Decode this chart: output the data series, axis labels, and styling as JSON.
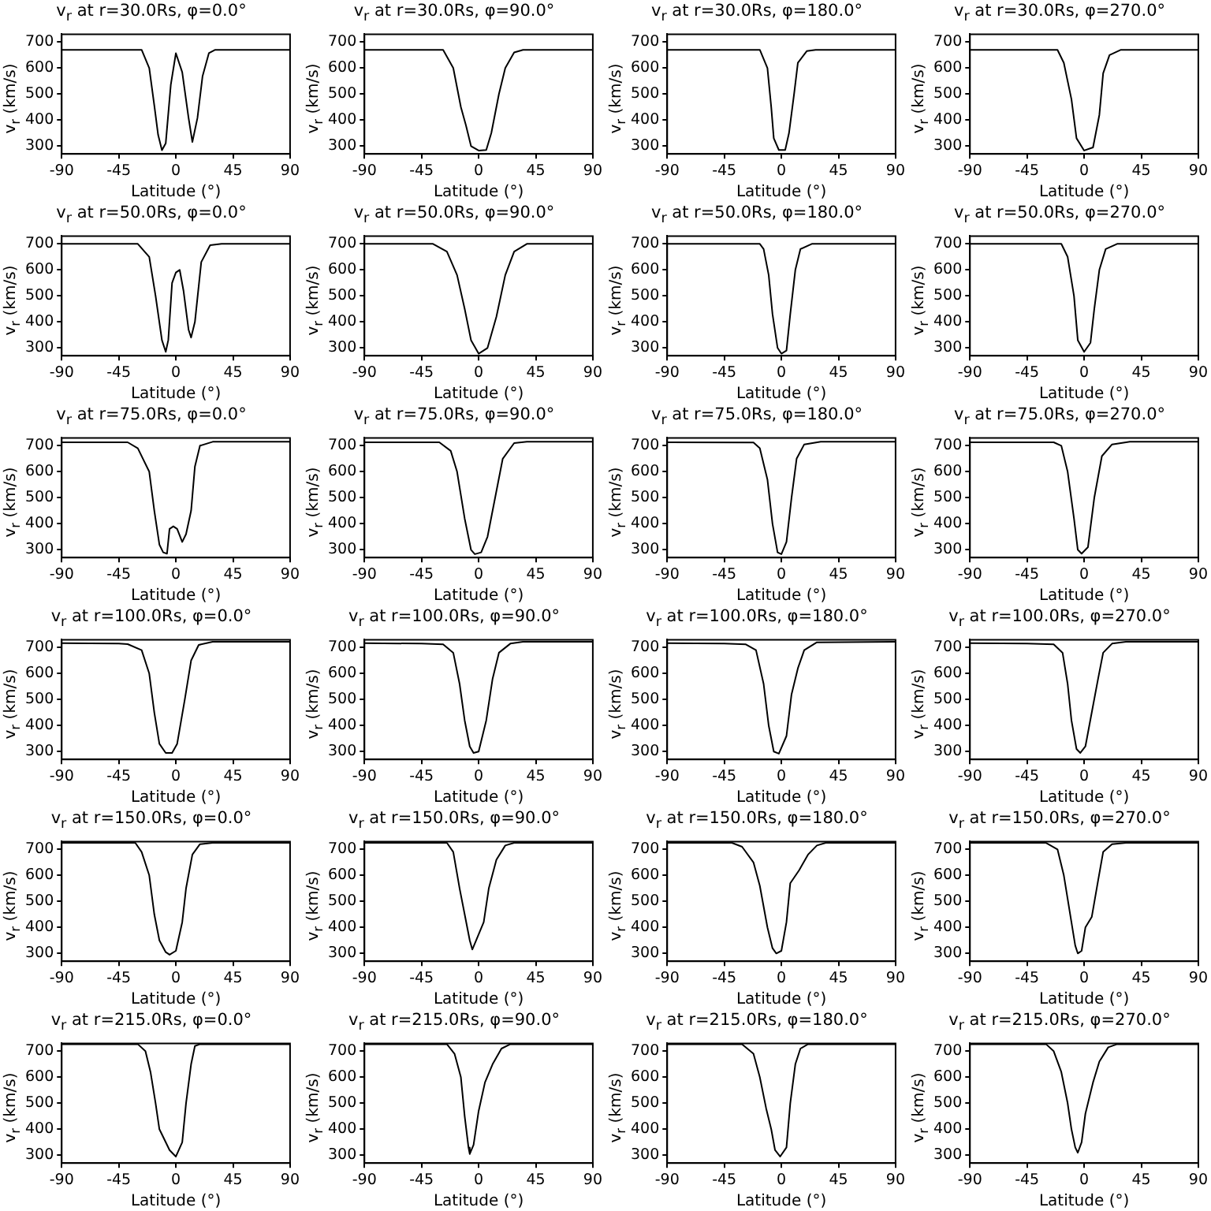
{
  "chart_data": [
    {
      "type": "line",
      "title": "v$_{r}$ at r=30.0Rs, φ=0.0°",
      "xlabel": "Latitude (°)",
      "ylabel": "v$_{r}$ (km/s)",
      "xlim": [
        -90,
        90
      ],
      "xticks": [
        -90,
        -45,
        0,
        45,
        90
      ],
      "ylim": [
        270,
        730
      ],
      "yticks": [
        300,
        400,
        500,
        600,
        700
      ],
      "marker": "none",
      "color": "#000000",
      "x": [
        -90,
        -27,
        -21,
        -17,
        -14,
        -11,
        -8,
        -4,
        0,
        5,
        10,
        13,
        17,
        21,
        26,
        31,
        90
      ],
      "values": [
        670,
        670,
        600,
        456,
        343,
        284,
        311,
        536,
        657,
        584,
        408,
        316,
        408,
        568,
        657,
        670,
        670
      ]
    },
    {
      "type": "line",
      "title": "v$_{r}$ at r=30.0Rs, φ=90.0°",
      "xlabel": "Latitude (°)",
      "ylabel": "v$_{r}$ (km/s)",
      "xlim": [
        -90,
        90
      ],
      "xticks": [
        -90,
        -45,
        0,
        45,
        90
      ],
      "ylim": [
        270,
        730
      ],
      "yticks": [
        300,
        400,
        500,
        600,
        700
      ],
      "marker": "none",
      "color": "#000000",
      "x": [
        -90,
        -28,
        -20,
        -14,
        -10,
        -6,
        0,
        6,
        10,
        16,
        21,
        28,
        35,
        90
      ],
      "values": [
        670,
        670,
        600,
        450,
        380,
        300,
        283,
        285,
        350,
        500,
        600,
        660,
        670,
        670
      ]
    },
    {
      "type": "line",
      "title": "v$_{r}$ at r=30.0Rs, φ=180.0°",
      "xlabel": "Latitude (°)",
      "ylabel": "v$_{r}$ (km/s)",
      "xlim": [
        -90,
        90
      ],
      "xticks": [
        -90,
        -45,
        0,
        45,
        90
      ],
      "ylim": [
        270,
        730
      ],
      "yticks": [
        300,
        400,
        500,
        600,
        700
      ],
      "marker": "none",
      "color": "#000000",
      "x": [
        -90,
        -17,
        -11,
        -8,
        -6,
        -2,
        3,
        6,
        10,
        13,
        20,
        27,
        90
      ],
      "values": [
        670,
        670,
        600,
        450,
        330,
        285,
        285,
        350,
        500,
        620,
        665,
        670,
        670
      ]
    },
    {
      "type": "line",
      "title": "v$_{r}$ at r=30.0Rs, φ=270.0°",
      "xlabel": "Latitude (°)",
      "ylabel": "v$_{r}$ (km/s)",
      "xlim": [
        -90,
        90
      ],
      "xticks": [
        -90,
        -45,
        0,
        45,
        90
      ],
      "ylim": [
        270,
        730
      ],
      "yticks": [
        300,
        400,
        500,
        600,
        700
      ],
      "marker": "none",
      "color": "#000000",
      "x": [
        -90,
        -21,
        -16,
        -10,
        -6,
        0,
        7,
        12,
        15,
        20,
        29,
        90
      ],
      "values": [
        670,
        670,
        620,
        480,
        330,
        283,
        295,
        420,
        580,
        650,
        670,
        670
      ]
    },
    {
      "type": "line",
      "title": "v$_{r}$ at r=50.0Rs, φ=0.0°",
      "xlabel": "Latitude (°)",
      "ylabel": "v$_{r}$ (km/s)",
      "xlim": [
        -90,
        90
      ],
      "xticks": [
        -90,
        -45,
        0,
        45,
        90
      ],
      "ylim": [
        270,
        730
      ],
      "yticks": [
        300,
        400,
        500,
        600,
        700
      ],
      "marker": "none",
      "color": "#000000",
      "x": [
        -90,
        -30,
        -21,
        -16,
        -11,
        -8,
        -6,
        -3,
        0,
        3,
        6,
        10,
        12,
        15,
        20,
        27,
        36,
        90
      ],
      "values": [
        700,
        700,
        650,
        500,
        330,
        285,
        330,
        550,
        590,
        600,
        520,
        370,
        340,
        400,
        630,
        695,
        700,
        700
      ]
    },
    {
      "type": "line",
      "title": "v$_{r}$ at r=50.0Rs, φ=90.0°",
      "xlabel": "Latitude (°)",
      "ylabel": "v$_{r}$ (km/s)",
      "xlim": [
        -90,
        90
      ],
      "xticks": [
        -90,
        -45,
        0,
        45,
        90
      ],
      "ylim": [
        270,
        730
      ],
      "yticks": [
        300,
        400,
        500,
        600,
        700
      ],
      "marker": "none",
      "color": "#000000",
      "x": [
        -90,
        -36,
        -25,
        -17,
        -11,
        -6,
        0,
        7,
        14,
        21,
        28,
        38,
        90
      ],
      "values": [
        700,
        700,
        670,
        580,
        450,
        330,
        278,
        300,
        420,
        580,
        670,
        700,
        700
      ]
    },
    {
      "type": "line",
      "title": "v$_{r}$ at r=50.0Rs, φ=180.0°",
      "xlabel": "Latitude (°)",
      "ylabel": "v$_{r}$ (km/s)",
      "xlim": [
        -90,
        90
      ],
      "xticks": [
        -90,
        -45,
        0,
        45,
        90
      ],
      "ylim": [
        270,
        730
      ],
      "yticks": [
        300,
        400,
        500,
        600,
        700
      ],
      "marker": "none",
      "color": "#000000",
      "x": [
        -90,
        -17,
        -14,
        -10,
        -7,
        -3,
        0,
        4,
        7,
        11,
        15,
        24,
        90
      ],
      "values": [
        700,
        700,
        680,
        580,
        430,
        300,
        278,
        290,
        430,
        600,
        680,
        700,
        700
      ]
    },
    {
      "type": "line",
      "title": "v$_{r}$ at r=50.0Rs, φ=270.0°",
      "xlabel": "Latitude (°)",
      "ylabel": "v$_{r}$ (km/s)",
      "xlim": [
        -90,
        90
      ],
      "xticks": [
        -90,
        -45,
        0,
        45,
        90
      ],
      "ylim": [
        270,
        730
      ],
      "yticks": [
        300,
        400,
        500,
        600,
        700
      ],
      "marker": "none",
      "color": "#000000",
      "x": [
        -90,
        -18,
        -13,
        -8,
        -5,
        0,
        5,
        8,
        12,
        17,
        26,
        90
      ],
      "values": [
        700,
        700,
        650,
        500,
        330,
        285,
        320,
        450,
        600,
        680,
        700,
        700
      ]
    },
    {
      "type": "line",
      "title": "v$_{r}$ at r=75.0Rs, φ=0.0°",
      "xlabel": "Latitude (°)",
      "ylabel": "v$_{r}$ (km/s)",
      "xlim": [
        -90,
        90
      ],
      "xticks": [
        -90,
        -45,
        0,
        45,
        90
      ],
      "ylim": [
        270,
        730
      ],
      "yticks": [
        300,
        400,
        500,
        600,
        700
      ],
      "marker": "none",
      "color": "#000000",
      "x": [
        -90,
        -38,
        -30,
        -21,
        -17,
        -13,
        -10,
        -7,
        -5,
        -2,
        1,
        5,
        8,
        12,
        15,
        19,
        29,
        90
      ],
      "values": [
        713,
        713,
        690,
        600,
        450,
        320,
        290,
        285,
        380,
        390,
        380,
        330,
        360,
        450,
        620,
        700,
        715,
        715
      ]
    },
    {
      "type": "line",
      "title": "v$_{r}$ at r=75.0Rs, φ=90.0°",
      "xlabel": "Latitude (°)",
      "ylabel": "v$_{r}$ (km/s)",
      "xlim": [
        -90,
        90
      ],
      "xticks": [
        -90,
        -45,
        0,
        45,
        90
      ],
      "ylim": [
        270,
        730
      ],
      "yticks": [
        300,
        400,
        500,
        600,
        700
      ],
      "marker": "none",
      "color": "#000000",
      "x": [
        -90,
        -31,
        -22,
        -17,
        -11,
        -6,
        -3,
        2,
        7,
        13,
        19,
        28,
        38,
        90
      ],
      "values": [
        713,
        713,
        680,
        600,
        420,
        300,
        283,
        290,
        350,
        500,
        650,
        710,
        715,
        715
      ]
    },
    {
      "type": "line",
      "title": "v$_{r}$ at r=75.0Rs, φ=180.0°",
      "xlabel": "Latitude (°)",
      "ylabel": "v$_{r}$ (km/s)",
      "xlim": [
        -90,
        90
      ],
      "xticks": [
        -90,
        -45,
        0,
        45,
        90
      ],
      "ylim": [
        270,
        730
      ],
      "yticks": [
        300,
        400,
        500,
        600,
        700
      ],
      "marker": "none",
      "color": "#000000",
      "x": [
        -90,
        -22,
        -17,
        -11,
        -7,
        -3,
        0,
        4,
        8,
        12,
        18,
        31,
        90
      ],
      "values": [
        713,
        712,
        690,
        570,
        400,
        290,
        283,
        330,
        500,
        650,
        705,
        715,
        715
      ]
    },
    {
      "type": "line",
      "title": "v$_{r}$ at r=75.0Rs, φ=270.0°",
      "xlabel": "Latitude (°)",
      "ylabel": "v$_{r}$ (km/s)",
      "xlim": [
        -90,
        90
      ],
      "xticks": [
        -90,
        -45,
        0,
        45,
        90
      ],
      "ylim": [
        270,
        730
      ],
      "yticks": [
        300,
        400,
        500,
        600,
        700
      ],
      "marker": "none",
      "color": "#000000",
      "x": [
        -90,
        -24,
        -18,
        -13,
        -8,
        -5,
        -2,
        3,
        8,
        14,
        22,
        36,
        90
      ],
      "values": [
        713,
        713,
        700,
        600,
        420,
        300,
        285,
        310,
        500,
        660,
        705,
        715,
        715
      ]
    },
    {
      "type": "line",
      "title": "v$_{r}$ at r=100.0Rs, φ=0.0°",
      "xlabel": "Latitude (°)",
      "ylabel": "v$_{r}$ (km/s)",
      "xlim": [
        -90,
        90
      ],
      "xticks": [
        -90,
        -45,
        0,
        45,
        90
      ],
      "ylim": [
        270,
        730
      ],
      "yticks": [
        300,
        400,
        500,
        600,
        700
      ],
      "marker": "none",
      "color": "#000000",
      "x": [
        -90,
        -45,
        -38,
        -27,
        -21,
        -17,
        -13,
        -8,
        -3,
        1,
        7,
        12,
        18,
        29,
        90
      ],
      "values": [
        717,
        715,
        713,
        690,
        600,
        450,
        330,
        295,
        295,
        330,
        500,
        650,
        710,
        722,
        722
      ]
    },
    {
      "type": "line",
      "title": "v$_{r}$ at r=100.0Rs, φ=90.0°",
      "xlabel": "Latitude (°)",
      "ylabel": "v$_{r}$ (km/s)",
      "xlim": [
        -90,
        90
      ],
      "xticks": [
        -90,
        -45,
        0,
        45,
        90
      ],
      "ylim": [
        270,
        730
      ],
      "yticks": [
        300,
        400,
        500,
        600,
        700
      ],
      "marker": "none",
      "color": "#000000",
      "x": [
        -90,
        -45,
        -28,
        -20,
        -15,
        -11,
        -7,
        -4,
        0,
        6,
        11,
        16,
        25,
        35,
        90
      ],
      "values": [
        717,
        715,
        712,
        680,
        560,
        420,
        320,
        295,
        300,
        420,
        580,
        680,
        715,
        722,
        722
      ]
    },
    {
      "type": "line",
      "title": "v$_{r}$ at r=100.0Rs, φ=180.0°",
      "xlabel": "Latitude (°)",
      "ylabel": "v$_{r}$ (km/s)",
      "xlim": [
        -90,
        90
      ],
      "xticks": [
        -90,
        -45,
        0,
        45,
        90
      ],
      "ylim": [
        270,
        730
      ],
      "yticks": [
        300,
        400,
        500,
        600,
        700
      ],
      "marker": "none",
      "color": "#000000",
      "x": [
        -90,
        -45,
        -28,
        -20,
        -14,
        -10,
        -6,
        -2,
        4,
        8,
        13,
        18,
        28,
        90
      ],
      "values": [
        717,
        715,
        712,
        690,
        560,
        400,
        300,
        292,
        360,
        520,
        620,
        690,
        720,
        722
      ]
    },
    {
      "type": "line",
      "title": "v$_{r}$ at r=100.0Rs, φ=270.0°",
      "xlabel": "Latitude (°)",
      "ylabel": "v$_{r}$ (km/s)",
      "xlim": [
        -90,
        90
      ],
      "xticks": [
        -90,
        -45,
        0,
        45,
        90
      ],
      "ylim": [
        270,
        730
      ],
      "yticks": [
        300,
        400,
        500,
        600,
        700
      ],
      "marker": "none",
      "color": "#000000",
      "x": [
        -90,
        -45,
        -24,
        -17,
        -13,
        -10,
        -6,
        -3,
        1,
        6,
        11,
        15,
        22,
        33,
        90
      ],
      "values": [
        717,
        715,
        712,
        680,
        560,
        420,
        310,
        295,
        320,
        450,
        580,
        680,
        715,
        722,
        722
      ]
    },
    {
      "type": "line",
      "title": "v$_{r}$ at r=150.0Rs, φ=0.0°",
      "xlabel": "Latitude (°)",
      "ylabel": "v$_{r}$ (km/s)",
      "xlim": [
        -90,
        90
      ],
      "xticks": [
        -90,
        -45,
        0,
        45,
        90
      ],
      "ylim": [
        270,
        730
      ],
      "yticks": [
        300,
        400,
        500,
        600,
        700
      ],
      "marker": "none",
      "color": "#000000",
      "x": [
        -90,
        -32,
        -27,
        -21,
        -17,
        -13,
        -8,
        -5,
        0,
        5,
        8,
        13,
        19,
        29,
        90
      ],
      "values": [
        725,
        725,
        690,
        600,
        450,
        350,
        305,
        295,
        310,
        420,
        550,
        680,
        720,
        725,
        725
      ]
    },
    {
      "type": "line",
      "title": "v$_{r}$ at r=150.0Rs, φ=90.0°",
      "xlabel": "Latitude (°)",
      "ylabel": "v$_{r}$ (km/s)",
      "xlim": [
        -90,
        90
      ],
      "xticks": [
        -90,
        -45,
        0,
        45,
        90
      ],
      "ylim": [
        270,
        730
      ],
      "yticks": [
        300,
        400,
        500,
        600,
        700
      ],
      "marker": "none",
      "color": "#000000",
      "x": [
        -90,
        -25,
        -20,
        -15,
        -11,
        -7,
        -5,
        -2,
        4,
        8,
        14,
        21,
        28,
        90
      ],
      "values": [
        725,
        725,
        690,
        550,
        450,
        350,
        315,
        350,
        420,
        550,
        660,
        715,
        725,
        725
      ]
    },
    {
      "type": "line",
      "title": "v$_{r}$ at r=150.0Rs, φ=180.0°",
      "xlabel": "Latitude (°)",
      "ylabel": "v$_{r}$ (km/s)",
      "xlim": [
        -90,
        90
      ],
      "xticks": [
        -90,
        -45,
        0,
        45,
        90
      ],
      "ylim": [
        270,
        730
      ],
      "yticks": [
        300,
        400,
        500,
        600,
        700
      ],
      "marker": "none",
      "color": "#000000",
      "x": [
        -90,
        -39,
        -31,
        -22,
        -17,
        -11,
        -7,
        -4,
        0,
        4,
        7,
        14,
        21,
        28,
        35,
        90
      ],
      "values": [
        725,
        725,
        710,
        650,
        560,
        400,
        320,
        300,
        310,
        420,
        570,
        620,
        680,
        715,
        725,
        725
      ]
    },
    {
      "type": "line",
      "title": "v$_{r}$ at r=150.0Rs, φ=270.0°",
      "xlabel": "Latitude (°)",
      "ylabel": "v$_{r}$ (km/s)",
      "xlim": [
        -90,
        90
      ],
      "xticks": [
        -90,
        -45,
        0,
        45,
        90
      ],
      "ylim": [
        270,
        730
      ],
      "yticks": [
        300,
        400,
        500,
        600,
        700
      ],
      "marker": "none",
      "color": "#000000",
      "x": [
        -90,
        -30,
        -21,
        -16,
        -11,
        -7,
        -5,
        -2,
        1,
        6,
        11,
        15,
        22,
        33,
        90
      ],
      "values": [
        725,
        725,
        700,
        600,
        450,
        330,
        300,
        310,
        400,
        440,
        580,
        690,
        720,
        725,
        725
      ]
    },
    {
      "type": "line",
      "title": "v$_{r}$ at r=215.0Rs, φ=0.0°",
      "xlabel": "Latitude (°)",
      "ylabel": "v$_{r}$ (km/s)",
      "xlim": [
        -90,
        90
      ],
      "xticks": [
        -90,
        -45,
        0,
        45,
        90
      ],
      "ylim": [
        270,
        730
      ],
      "yticks": [
        300,
        400,
        500,
        600,
        700
      ],
      "marker": "none",
      "color": "#000000",
      "x": [
        -90,
        -30,
        -24,
        -20,
        -16,
        -13,
        -8,
        -5,
        0,
        5,
        8,
        12,
        15,
        19,
        90
      ],
      "values": [
        727,
        727,
        700,
        620,
        500,
        400,
        350,
        320,
        295,
        350,
        500,
        650,
        720,
        727,
        727
      ]
    },
    {
      "type": "line",
      "title": "v$_{r}$ at r=215.0Rs, φ=90.0°",
      "xlabel": "Latitude (°)",
      "ylabel": "v$_{r}$ (km/s)",
      "xlim": [
        -90,
        90
      ],
      "xticks": [
        -90,
        -45,
        0,
        45,
        90
      ],
      "ylim": [
        270,
        730
      ],
      "yticks": [
        300,
        400,
        500,
        600,
        700
      ],
      "marker": "none",
      "color": "#000000",
      "x": [
        -90,
        -25,
        -19,
        -14,
        -11,
        -8,
        -7,
        -4,
        0,
        5,
        11,
        18,
        25,
        90
      ],
      "values": [
        727,
        727,
        690,
        600,
        450,
        330,
        305,
        340,
        470,
        580,
        650,
        710,
        727,
        727
      ]
    },
    {
      "type": "line",
      "title": "v$_{r}$ at r=215.0Rs, φ=180.0°",
      "xlabel": "Latitude (°)",
      "ylabel": "v$_{r}$ (km/s)",
      "xlim": [
        -90,
        90
      ],
      "xticks": [
        -90,
        -45,
        0,
        45,
        90
      ],
      "ylim": [
        270,
        730
      ],
      "yticks": [
        300,
        400,
        500,
        600,
        700
      ],
      "marker": "none",
      "color": "#000000",
      "x": [
        -90,
        -31,
        -22,
        -17,
        -12,
        -8,
        -5,
        -1,
        4,
        7,
        11,
        15,
        21,
        90
      ],
      "values": [
        727,
        727,
        690,
        600,
        480,
        400,
        320,
        295,
        330,
        500,
        650,
        710,
        727,
        727
      ]
    },
    {
      "type": "line",
      "title": "v$_{r}$ at r=215.0Rs, φ=270.0°",
      "xlabel": "Latitude (°)",
      "ylabel": "v$_{r}$ (km/s)",
      "xlim": [
        -90,
        90
      ],
      "xticks": [
        -90,
        -45,
        0,
        45,
        90
      ],
      "ylim": [
        270,
        730
      ],
      "yticks": [
        300,
        400,
        500,
        600,
        700
      ],
      "marker": "none",
      "color": "#000000",
      "x": [
        -90,
        -30,
        -24,
        -18,
        -13,
        -10,
        -7,
        -5,
        -2,
        1,
        7,
        12,
        19,
        26,
        90
      ],
      "values": [
        727,
        727,
        700,
        620,
        500,
        400,
        330,
        310,
        350,
        460,
        580,
        660,
        715,
        727,
        727
      ]
    }
  ]
}
